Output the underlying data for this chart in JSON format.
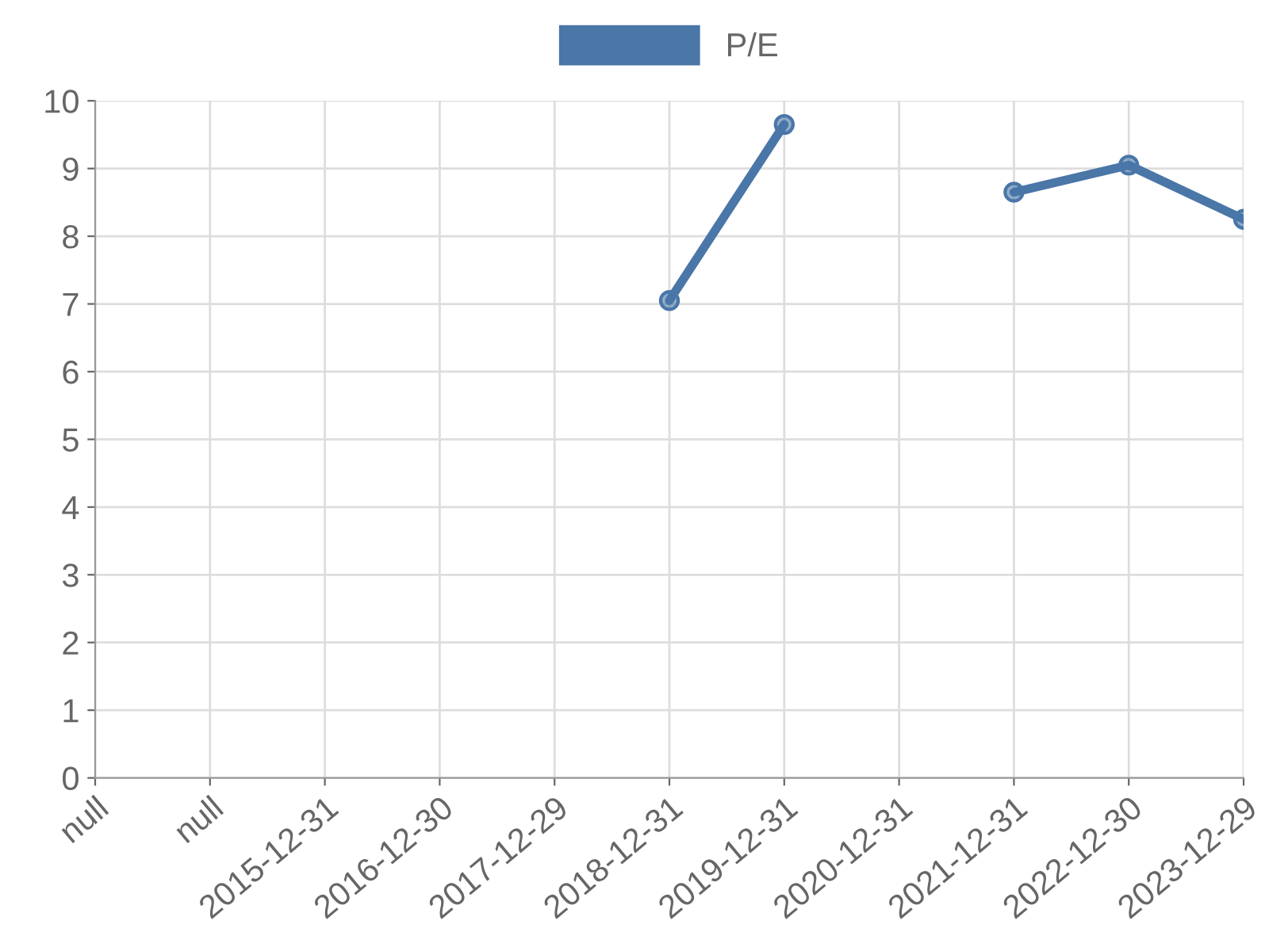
{
  "chart_data": {
    "type": "line",
    "categories": [
      "null",
      "null",
      "2015-12-31",
      "2016-12-30",
      "2017-12-29",
      "2018-12-31",
      "2019-12-31",
      "2020-12-31",
      "2021-12-31",
      "2022-12-30",
      "2023-12-29"
    ],
    "series": [
      {
        "name": "P/E",
        "color": "#4a76a8",
        "values": [
          null,
          null,
          null,
          null,
          null,
          7.05,
          9.65,
          null,
          8.65,
          9.05,
          8.25
        ]
      }
    ],
    "ylim": [
      0,
      10
    ],
    "yticks": [
      0,
      1,
      2,
      3,
      4,
      5,
      6,
      7,
      8,
      9,
      10
    ],
    "grid": true,
    "legend": "top",
    "marker": "circle",
    "line_style": "solid"
  }
}
